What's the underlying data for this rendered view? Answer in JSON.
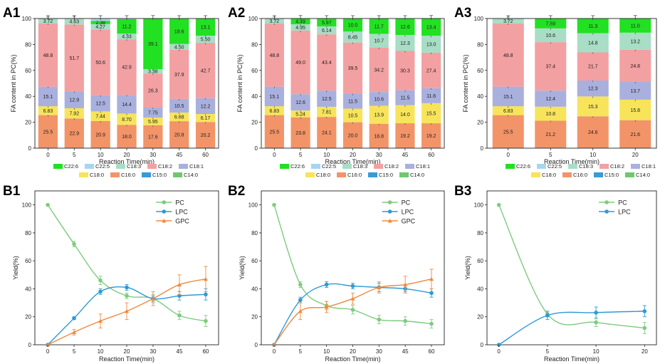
{
  "colors": {
    "C22:6": "#22e022",
    "C22:5": "#a9d4ee",
    "C18:3": "#a8ddc6",
    "C18:2": "#f3a0a2",
    "C18:1": "#a9b0dd",
    "C18:0": "#f7e45a",
    "C16:0": "#f29468",
    "C15:0": "#3a9ad6",
    "C14:0": "#6fc76f",
    "PC": "#7ecb7e",
    "LPC": "#2e9ad6",
    "GPC": "#f08a3c"
  },
  "chart_data": [
    {
      "id": "A1",
      "panel_label": "A1",
      "type": "stacked-bar",
      "xlabel": "Reaction Time(min)",
      "ylabel": "FA content in PC(%)",
      "ylim": [
        0,
        100
      ],
      "yticks": [
        "0",
        "20",
        "40",
        "60",
        "80",
        "100"
      ],
      "categories": [
        "0",
        "5",
        "10",
        "20",
        "30",
        "45",
        "60"
      ],
      "legend": [
        "C22:6",
        "C22:5",
        "C18:3",
        "C18:2",
        "C18:1",
        "C18:0",
        "C16:0",
        "C15:0",
        "C14:0"
      ],
      "series": [
        {
          "name": "C16:0",
          "values": [
            25.5,
            22.9,
            20.9,
            18.0,
            17.6,
            20.8,
            20.2
          ],
          "labels": [
            "25.5",
            "22.9",
            "20.9",
            "18.0",
            "17.6",
            "20.8",
            "20.2"
          ]
        },
        {
          "name": "C18:0",
          "values": [
            6.83,
            7.92,
            7.44,
            8.7,
            5.95,
            6.68,
            6.17
          ],
          "labels": [
            "6.83",
            "7.92",
            "7.44",
            "8.70",
            "5.95",
            "6.68",
            "6.17"
          ]
        },
        {
          "name": "C18:1",
          "values": [
            15.1,
            12.9,
            12.5,
            14.4,
            7.75,
            10.5,
            12.2
          ],
          "labels": [
            "15.1",
            "12.9",
            "12.5",
            "14.4",
            "7.75",
            "10.5",
            "12.2"
          ]
        },
        {
          "name": "C18:2",
          "values": [
            48.8,
            51.7,
            50.6,
            42.9,
            26.3,
            37.9,
            42.7
          ],
          "labels": [
            "48.8",
            "51.7",
            "50.6",
            "42.9",
            "26.3",
            "37.9",
            "42.7"
          ]
        },
        {
          "name": "C18:3",
          "values": [
            3.72,
            4.63,
            4.27,
            4.33,
            3.38,
            4.5,
            5.5
          ],
          "labels": [
            "3.72",
            "4.63",
            "4.27",
            "4.33",
            "3.38",
            "4.50",
            "5.50"
          ]
        },
        {
          "name": "C22:6",
          "values": [
            0,
            0,
            2.38,
            11.2,
            39.1,
            19.6,
            13.1
          ],
          "labels": [
            "",
            "",
            "2.38",
            "11.2",
            "39.1",
            "19.6",
            "13.1"
          ]
        }
      ]
    },
    {
      "id": "A2",
      "panel_label": "A2",
      "type": "stacked-bar",
      "xlabel": "Reaction Time(min)",
      "ylabel": "FA content in PC(%)",
      "ylim": [
        0,
        100
      ],
      "yticks": [
        "0",
        "20",
        "40",
        "60",
        "80",
        "100"
      ],
      "categories": [
        "0",
        "5",
        "10",
        "20",
        "30",
        "45",
        "60"
      ],
      "legend": [
        "C22:6",
        "C22:5",
        "C18:3",
        "C18:2",
        "C18:1",
        "C18:0",
        "C16:0",
        "C15:0",
        "C14:0"
      ],
      "series": [
        {
          "name": "C16:0",
          "values": [
            25.5,
            23.8,
            24.1,
            20.0,
            18.8,
            19.2,
            19.2
          ],
          "labels": [
            "25.5",
            "23.8",
            "24.1",
            "20.0",
            "18.8",
            "19.2",
            "19.2"
          ]
        },
        {
          "name": "C18:0",
          "values": [
            6.83,
            5.24,
            7.81,
            10.5,
            13.9,
            14.0,
            15.5
          ],
          "labels": [
            "6.83",
            "5.24",
            "7.81",
            "10.5",
            "13.9",
            "14.0",
            "15.5"
          ]
        },
        {
          "name": "C18:1",
          "values": [
            15.1,
            12.6,
            12.5,
            11.5,
            10.6,
            11.5,
            11.6
          ],
          "labels": [
            "15.1",
            "12.6",
            "12.5",
            "11.5",
            "10.6",
            "11.5",
            "11.6"
          ]
        },
        {
          "name": "C18:2",
          "values": [
            48.8,
            49.0,
            43.4,
            39.5,
            34.2,
            30.3,
            27.4
          ],
          "labels": [
            "48.8",
            "49.0",
            "43.4",
            "39.5",
            "34.2",
            "30.3",
            "27.4"
          ]
        },
        {
          "name": "C18:3",
          "values": [
            3.72,
            4.95,
            6.14,
            8.45,
            10.7,
            12.3,
            13.0
          ],
          "labels": [
            "3.72",
            "4.95",
            "6.14",
            "8.45",
            "10.7",
            "12.3",
            "13.0"
          ]
        },
        {
          "name": "C22:6",
          "values": [
            0,
            4.49,
            5.97,
            10.0,
            11.7,
            12.6,
            13.4
          ],
          "labels": [
            "",
            "4.49",
            "5.97",
            "10.0",
            "11.7",
            "12.6",
            "13.4"
          ]
        }
      ]
    },
    {
      "id": "A3",
      "panel_label": "A3",
      "type": "stacked-bar",
      "xlabel": "Reaction Time(min)",
      "ylabel": "FA content in PC(%)",
      "ylim": [
        0,
        100
      ],
      "yticks": [
        "0",
        "20",
        "40",
        "60",
        "80",
        "100"
      ],
      "categories": [
        "0",
        "5",
        "10",
        "20"
      ],
      "legend": [
        "C22:6",
        "C22:5",
        "C18:3",
        "C18:2",
        "C18:1",
        "C18:0",
        "C16:0",
        "C15:0",
        "C14:0"
      ],
      "series": [
        {
          "name": "C16:0",
          "values": [
            25.5,
            21.2,
            24.6,
            21.6
          ],
          "labels": [
            "25.5",
            "21.2",
            "24.6",
            "21.6"
          ]
        },
        {
          "name": "C18:0",
          "values": [
            6.83,
            10.8,
            15.3,
            15.8
          ],
          "labels": [
            "6.83",
            "10.8",
            "15.3",
            "15.8"
          ]
        },
        {
          "name": "C18:1",
          "values": [
            15.1,
            12.4,
            12.3,
            13.7
          ],
          "labels": [
            "15.1",
            "12.4",
            "12.3",
            "13.7"
          ]
        },
        {
          "name": "C18:2",
          "values": [
            48.8,
            37.4,
            21.7,
            24.8
          ],
          "labels": [
            "48.8",
            "37.4",
            "21.7",
            "24.8"
          ]
        },
        {
          "name": "C18:3",
          "values": [
            3.72,
            10.6,
            14.8,
            13.2
          ],
          "labels": [
            "3.72",
            "10.6",
            "14.8",
            "13.2"
          ]
        },
        {
          "name": "C22:6",
          "values": [
            0,
            7.59,
            11.3,
            11.0
          ],
          "labels": [
            "",
            "7.59",
            "11.3",
            "11.0"
          ]
        }
      ]
    },
    {
      "id": "B1",
      "panel_label": "B1",
      "type": "line",
      "xlabel": "Reaction Time(min)",
      "ylabel": "Yield(%)",
      "ylim": [
        0,
        110
      ],
      "yticks": [
        "0",
        "20",
        "40",
        "60",
        "80",
        "100"
      ],
      "categories": [
        "0",
        "5",
        "10",
        "20",
        "30",
        "45",
        "60"
      ],
      "series": [
        {
          "name": "PC",
          "values": [
            100,
            72,
            46,
            35,
            33,
            21,
            17
          ],
          "errors": [
            0,
            2,
            3,
            2,
            3,
            3,
            4
          ]
        },
        {
          "name": "LPC",
          "values": [
            0,
            19,
            38,
            41,
            33,
            35,
            36
          ],
          "errors": [
            0,
            1,
            2,
            2,
            2,
            3,
            4
          ]
        },
        {
          "name": "GPC",
          "values": [
            0,
            9,
            17,
            24,
            33,
            43,
            47
          ],
          "errors": [
            0,
            2,
            5,
            6,
            5,
            7,
            9
          ]
        }
      ]
    },
    {
      "id": "B2",
      "panel_label": "B2",
      "type": "line",
      "xlabel": "Reaction Time(min)",
      "ylabel": "Yield(%)",
      "ylim": [
        0,
        110
      ],
      "yticks": [
        "0",
        "20",
        "40",
        "60",
        "80",
        "100"
      ],
      "categories": [
        "0",
        "5",
        "10",
        "20",
        "30",
        "45",
        "60"
      ],
      "series": [
        {
          "name": "PC",
          "values": [
            100,
            43,
            28,
            25,
            18,
            17,
            15
          ],
          "errors": [
            0,
            2,
            3,
            3,
            3,
            3,
            3
          ]
        },
        {
          "name": "LPC",
          "values": [
            0,
            32,
            43,
            42,
            41,
            40,
            37
          ],
          "errors": [
            0,
            2,
            2,
            2,
            3,
            2,
            3
          ]
        },
        {
          "name": "GPC",
          "values": [
            0,
            24,
            27,
            33,
            41,
            43,
            47
          ],
          "errors": [
            0,
            6,
            4,
            4,
            4,
            6,
            7
          ]
        }
      ]
    },
    {
      "id": "B3",
      "panel_label": "B3",
      "type": "line",
      "xlabel": "Reaction Time(min)",
      "ylabel": "Yield(%)",
      "ylim": [
        0,
        110
      ],
      "yticks": [
        "0",
        "20",
        "40",
        "60",
        "80",
        "100"
      ],
      "categories": [
        "0",
        "5",
        "10",
        "20"
      ],
      "series": [
        {
          "name": "PC",
          "values": [
            100,
            22,
            16,
            12
          ],
          "errors": [
            0,
            2,
            3,
            4
          ]
        },
        {
          "name": "LPC",
          "values": [
            0,
            21,
            23,
            24
          ],
          "errors": [
            0,
            3,
            4,
            4
          ]
        }
      ]
    }
  ]
}
